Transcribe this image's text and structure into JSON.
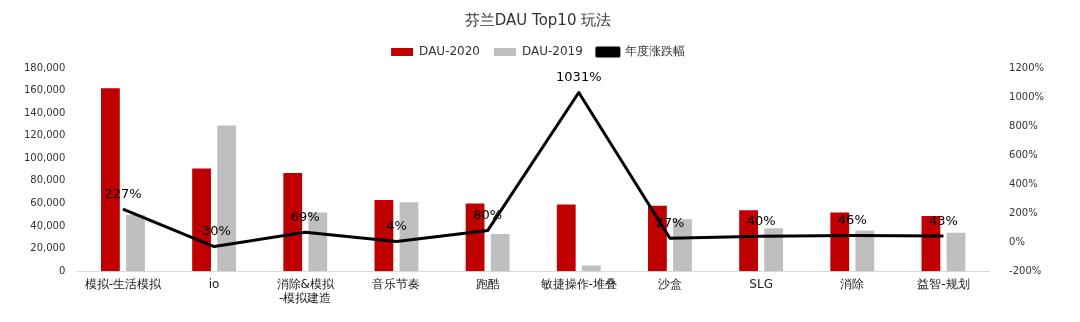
{
  "chart_data": {
    "type": "bar",
    "title": "芬兰DAU Top10 玩法",
    "categories": [
      "模拟-生活模拟",
      "io",
      "消除&模拟-模拟建造",
      "音乐节奏",
      "跑酷",
      "敏捷操作-堆叠",
      "沙盒",
      "SLG",
      "消除",
      "益智-规划"
    ],
    "series": [
      {
        "name": "DAU-2020",
        "color": "#c00000",
        "values": [
          162000,
          91000,
          87000,
          63000,
          60000,
          59000,
          58000,
          54000,
          52000,
          49000
        ]
      },
      {
        "name": "DAU-2019",
        "color": "#bfbfbf",
        "values": [
          50000,
          129000,
          52000,
          61000,
          33000,
          5000,
          46000,
          38000,
          36000,
          34000
        ]
      },
      {
        "name": "年度涨跌幅",
        "type": "line",
        "axis": "y2",
        "color": "#000000",
        "values": [
          227,
          -30,
          69,
          4,
          80,
          1031,
          27,
          40,
          46,
          43
        ],
        "value_labels": [
          "227%",
          "-30%",
          "69%",
          "4%",
          "80%",
          "1031%",
          "27%",
          "40%",
          "46%",
          "43%"
        ]
      }
    ],
    "ylim": [
      0,
      180000
    ],
    "yticks": [
      {
        "value": 0,
        "label": "0"
      },
      {
        "value": 20000,
        "label": "20,000"
      },
      {
        "value": 40000,
        "label": "40,000"
      },
      {
        "value": 60000,
        "label": "60,000"
      },
      {
        "value": 80000,
        "label": "80,000"
      },
      {
        "value": 100000,
        "label": "100,000"
      },
      {
        "value": 120000,
        "label": "120,000"
      },
      {
        "value": 140000,
        "label": "140,000"
      },
      {
        "value": 160000,
        "label": "160,000"
      },
      {
        "value": 180000,
        "label": "180,000"
      }
    ],
    "y2lim": [
      -200,
      1200
    ],
    "y2ticks": [
      {
        "value": -200,
        "label": "-200%"
      },
      {
        "value": 0,
        "label": "0%"
      },
      {
        "value": 200,
        "label": "200%"
      },
      {
        "value": 400,
        "label": "400%"
      },
      {
        "value": 600,
        "label": "600%"
      },
      {
        "value": 800,
        "label": "800%"
      },
      {
        "value": 1000,
        "label": "1000%"
      },
      {
        "value": 1200,
        "label": "1200%"
      }
    ],
    "legend": "top",
    "grid": false,
    "marker": "none"
  }
}
